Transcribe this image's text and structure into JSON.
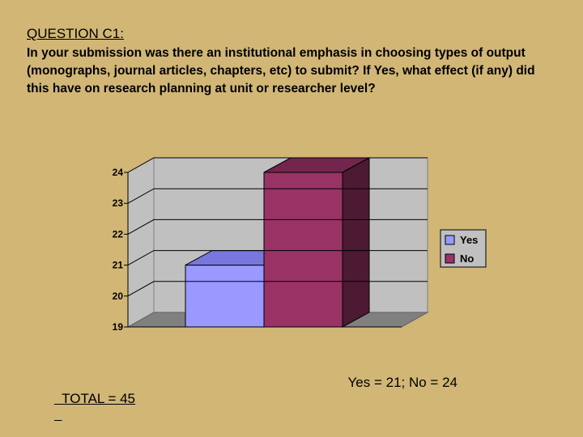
{
  "question": {
    "title": "QUESTION C1:",
    "text": "In your submission was there an institutional emphasis in choosing types of output (monographs, journal articles, chapters, etc) to submit? If Yes, what effect (if any) did this have on research planning at unit or researcher level?"
  },
  "chart_data": {
    "type": "bar",
    "categories": [
      "Yes",
      "No"
    ],
    "values": [
      21,
      24
    ],
    "ylim": [
      19,
      24
    ],
    "yticks": [
      19,
      20,
      21,
      22,
      23,
      24
    ],
    "grid": true,
    "legend": "right",
    "colors": [
      "#9999ff",
      "#993366"
    ],
    "side_colors": [
      "#6666cc",
      "#4d1a33"
    ],
    "top_colors": [
      "#7777dd",
      "#73264d"
    ]
  },
  "footer": {
    "total": "TOTAL = 45",
    "breakdown": "Yes = 21; No = 24"
  }
}
